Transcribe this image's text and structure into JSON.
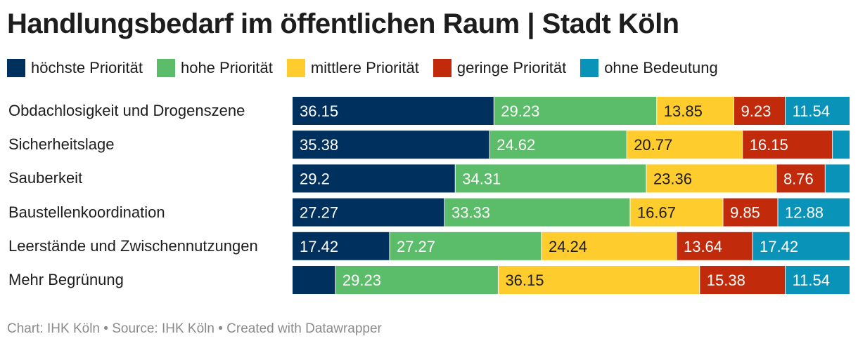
{
  "title": "Handlungsbedarf im öffentlichen Raum | Stadt Köln",
  "footer": "Chart: IHK Köln • Source: IHK Köln • Created with Datawrapper",
  "chart_data": {
    "type": "bar",
    "orientation": "horizontal",
    "stacked": true,
    "title": "Handlungsbedarf im öffentlichen Raum | Stadt Köln",
    "categories": [
      "Obdachlosigkeit und Drogenszene",
      "Sicherheitslage",
      "Sauberkeit",
      "Baustellenkoordination",
      "Leerstände und Zwischennutzungen",
      "Mehr Begrünung"
    ],
    "series": [
      {
        "name": "höchste Priorität",
        "color": "#00305e",
        "label_color": "#ffffff",
        "values": [
          36.15,
          35.38,
          29.2,
          27.27,
          17.42,
          7.69
        ]
      },
      {
        "name": "hohe Priorität",
        "color": "#5bbd69",
        "label_color": "#ffffff",
        "values": [
          29.23,
          24.62,
          34.31,
          33.33,
          27.27,
          29.23
        ]
      },
      {
        "name": "mittlere Priorität",
        "color": "#ffcc2e",
        "label_color": "#1d1d1d",
        "values": [
          13.85,
          20.77,
          23.36,
          16.67,
          24.24,
          36.15
        ]
      },
      {
        "name": "geringe Priorität",
        "color": "#c22a0c",
        "label_color": "#ffffff",
        "values": [
          9.23,
          16.15,
          8.76,
          9.85,
          13.64,
          15.38
        ]
      },
      {
        "name": "ohne Bedeutung",
        "color": "#0a93b8",
        "label_color": "#ffffff",
        "values": [
          11.54,
          3.08,
          4.38,
          12.88,
          17.42,
          11.54
        ]
      }
    ],
    "value_labels": [
      [
        "36.15",
        "29.23",
        "13.85",
        "9.23",
        "11.54"
      ],
      [
        "35.38",
        "24.62",
        "20.77",
        "16.15",
        ""
      ],
      [
        "29.2",
        "34.31",
        "23.36",
        "8.76",
        ""
      ],
      [
        "27.27",
        "33.33",
        "16.67",
        "9.85",
        "12.88"
      ],
      [
        "17.42",
        "27.27",
        "24.24",
        "13.64",
        "17.42"
      ],
      [
        "",
        "29.23",
        "36.15",
        "15.38",
        "11.54"
      ]
    ],
    "legend_position": "top-left",
    "grid": false
  }
}
